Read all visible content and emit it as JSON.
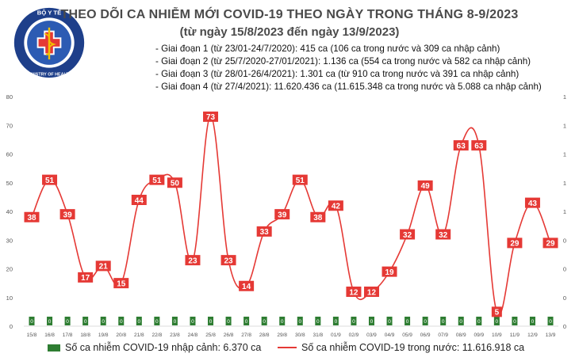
{
  "header": {
    "title": "THEO DÕI CA NHIỄM MỚI COVID-19 THEO NGÀY TRONG THÁNG 8-9/2023",
    "subtitle": "(từ ngày 15/8/2023 đến ngày 13/9/2023)",
    "logo_text_top": "BỘ Y TẾ",
    "logo_text_bottom": "MINISTRY OF HEALTH"
  },
  "phases": [
    "- Giai đoạn 1 (từ 23/01-24/7/2020): 415 ca (106 ca trong nước và 309 ca nhập cảnh)",
    "- Giai đoạn 2 (từ 25/7/2020-27/01/2021): 1.136 ca (554 ca trong nước và 582 ca nhập cảnh)",
    "- Giai đoạn 3 (từ 28/01-26/4/2021): 1.301 ca (từ 910 ca trong nước và 391 ca nhập cảnh)",
    "- Giai đoạn 4 (từ 27/4/2021): 11.620.436 ca (11.615.348 ca trong nước và 5.088 ca nhập cảnh)"
  ],
  "legend": {
    "bar_label": "Số ca nhiễm COVID-19 nhập cảnh: 6.370 ca",
    "line_label": "Số ca nhiễm COVID-19 trong nước: 11.616.918 ca"
  },
  "colors": {
    "line": "#e53935",
    "bar": "#2e7d32",
    "label_bg": "#e53935",
    "label_text": "#ffffff",
    "axis_text": "#555555"
  },
  "chart_data": {
    "type": "line",
    "categories": [
      "15/8",
      "16/8",
      "17/8",
      "18/8",
      "19/8",
      "20/8",
      "21/8",
      "22/8",
      "23/8",
      "24/8",
      "25/8",
      "26/8",
      "27/8",
      "28/8",
      "29/8",
      "30/8",
      "31/8",
      "01/9",
      "02/9",
      "03/9",
      "04/9",
      "05/9",
      "06/9",
      "07/9",
      "08/9",
      "09/9",
      "10/9",
      "11/9",
      "12/9",
      "13/9"
    ],
    "series": [
      {
        "values": [
          38,
          51,
          39,
          17,
          21,
          15,
          44,
          51,
          50,
          23,
          73,
          23,
          14,
          33,
          39,
          51,
          38,
          42,
          12,
          12,
          19,
          32,
          49,
          32,
          63,
          63,
          5,
          29,
          43,
          29
        ]
      },
      {
        "values": [
          0,
          0,
          0,
          0,
          0,
          0,
          0,
          0,
          0,
          0,
          0,
          0,
          0,
          0,
          0,
          0,
          0,
          0,
          0,
          0,
          0,
          0,
          0,
          0,
          0,
          0,
          0,
          0,
          0,
          0
        ]
      }
    ],
    "bar_value_labels": [
      "0",
      "0",
      "0",
      "0",
      "0",
      "0",
      "0",
      "0",
      "0",
      "0",
      "0",
      "0",
      "0",
      "0",
      "0",
      "0",
      "0",
      "0",
      "0",
      "0",
      "0",
      "0",
      "0",
      "0",
      "0",
      "0",
      "0",
      "0",
      "0",
      "0"
    ],
    "yticks_left": [
      "0",
      "10",
      "20",
      "30",
      "40",
      "50",
      "60",
      "70",
      "80"
    ],
    "yticks_right": [
      "0",
      "0",
      "0",
      "0",
      "1",
      "1",
      "1",
      "1",
      "1"
    ],
    "ylim": [
      0,
      80
    ]
  }
}
